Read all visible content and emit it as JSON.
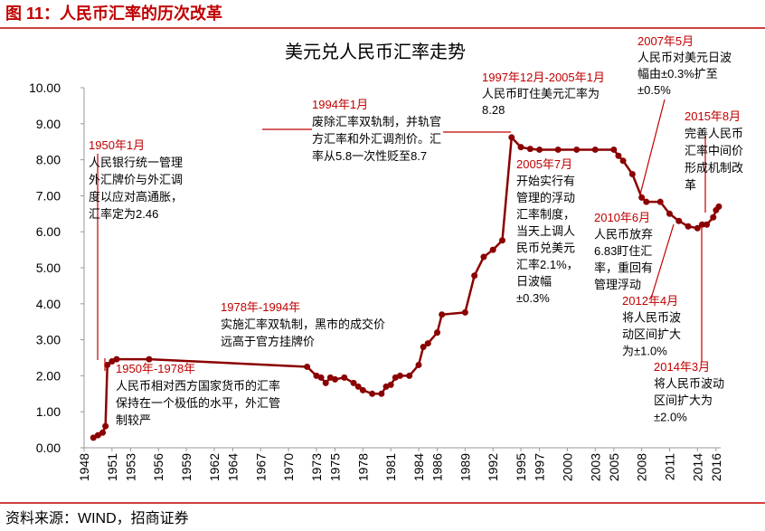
{
  "figure_title": "图 11：人民币汇率的历次改革",
  "source": "资料来源：WIND，招商证券",
  "chart_data": {
    "type": "line",
    "title": "美元兑人民币汇率走势",
    "color": "#8b0000",
    "markers": true,
    "x": [
      1949,
      1949.5,
      1950,
      1950.3,
      1950.5,
      1951,
      1951.5,
      1955,
      1972,
      1973,
      1973.5,
      1974,
      1974.5,
      1975,
      1976,
      1977,
      1977.5,
      1978,
      1979,
      1980,
      1980.5,
      1981,
      1981.5,
      1982,
      1983,
      1984,
      1984.5,
      1985,
      1986,
      1986.5,
      1989,
      1990,
      1991,
      1992,
      1993,
      1994,
      1995,
      1996,
      1997,
      1999,
      2001,
      2003,
      2005,
      2005.5,
      2006,
      2007,
      2008,
      2008.5,
      2010,
      2011,
      2012,
      2013,
      2014,
      2014.5,
      2015,
      2015.7,
      2016,
      2016.3
    ],
    "values": [
      0.28,
      0.35,
      0.42,
      0.6,
      2.3,
      2.4,
      2.46,
      2.46,
      2.25,
      2.0,
      1.95,
      1.8,
      1.95,
      1.9,
      1.95,
      1.8,
      1.7,
      1.6,
      1.5,
      1.5,
      1.7,
      1.75,
      1.95,
      2.0,
      2.0,
      2.3,
      2.8,
      2.9,
      3.2,
      3.7,
      3.76,
      4.78,
      5.3,
      5.5,
      5.76,
      8.62,
      8.35,
      8.3,
      8.28,
      8.28,
      8.28,
      8.28,
      8.28,
      8.11,
      7.97,
      7.6,
      6.95,
      6.83,
      6.83,
      6.5,
      6.3,
      6.15,
      6.1,
      6.2,
      6.2,
      6.4,
      6.6,
      6.7
    ],
    "xlim": [
      1948,
      2016.5
    ],
    "xticks": [
      1948,
      1951,
      1953,
      1956,
      1959,
      1962,
      1964,
      1967,
      1970,
      1973,
      1975,
      1978,
      1981,
      1984,
      1986,
      1989,
      1992,
      1995,
      1997,
      2000,
      2003,
      2005,
      2008,
      2011,
      2014,
      2016
    ],
    "ylim": [
      0,
      10
    ],
    "yticks": [
      {
        "value": 0,
        "label": "0.00"
      },
      {
        "value": 1,
        "label": "1.00"
      },
      {
        "value": 2,
        "label": "2.00"
      },
      {
        "value": 3,
        "label": "3.00"
      },
      {
        "value": 4,
        "label": "4.00"
      },
      {
        "value": 5,
        "label": "5.00"
      },
      {
        "value": 6,
        "label": "6.00"
      },
      {
        "value": 7,
        "label": "7.00"
      },
      {
        "value": 8,
        "label": "8.00"
      },
      {
        "value": 9,
        "label": "9.00"
      },
      {
        "value": 10,
        "label": "10.00"
      }
    ],
    "annotations": [
      {
        "title": "1950年1月",
        "lines": [
          "人民银行统一管理",
          "外汇牌价与外汇调",
          "度以应对高通胀，",
          "汇率定为2.46"
        ]
      },
      {
        "title": "1950年-1978年",
        "lines": [
          "人民币相对西方国家货币的汇率",
          "保持在一个极低的水平，外汇管",
          "制较严"
        ]
      },
      {
        "title": "1978年-1994年",
        "lines": [
          "实施汇率双轨制，黑市的成交价",
          "远高于官方挂牌价"
        ]
      },
      {
        "title": "1994年1月",
        "lines": [
          "废除汇率双轨制，并轨官",
          "方汇率和外汇调剂价。汇",
          "率从5.8一次性贬至8.7"
        ]
      },
      {
        "title": "1997年12月-2005年1月",
        "lines": [
          "人民币盯住美元汇率为",
          "8.28"
        ]
      },
      {
        "title": "2005年7月",
        "lines": [
          "开始实行有",
          "管理的浮动",
          "汇率制度，",
          "当天上调人",
          "民币兑美元",
          "汇率2.1%，",
          "日波幅",
          "±0.3%"
        ]
      },
      {
        "title": "2007年5月",
        "lines": [
          "人民币对美元日波",
          "幅由±0.3%扩至",
          "±0.5%"
        ]
      },
      {
        "title": "2015年8月",
        "lines": [
          "完善人民币",
          "汇率中间价",
          "形成机制改",
          "革"
        ]
      },
      {
        "title": "2010年6月",
        "lines": [
          "人民币放弃",
          "6.83盯住汇",
          "率，重回有",
          "管理浮动"
        ]
      },
      {
        "title": "2012年4月",
        "lines": [
          "将人民币波",
          "动区间扩大",
          "为±1.0%"
        ]
      },
      {
        "title": "2014年3月",
        "lines": [
          "将人民币波动",
          "区间扩大为",
          "±2.0%"
        ]
      }
    ]
  }
}
